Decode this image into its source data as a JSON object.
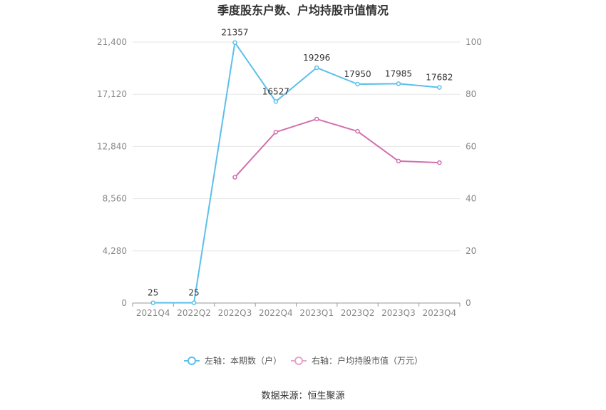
{
  "chart_data": {
    "type": "line",
    "title": "季度股东户数、户均持股市值情况",
    "categories": [
      "2021Q4",
      "2022Q2",
      "2022Q3",
      "2022Q4",
      "2023Q1",
      "2023Q2",
      "2023Q3",
      "2023Q4"
    ],
    "y_left": {
      "min": 0,
      "max": 21400,
      "ticks": [
        "0",
        "4,280",
        "8,560",
        "12,840",
        "17,120",
        "21,400"
      ],
      "tick_values": [
        0,
        4280,
        8560,
        12840,
        17120,
        21400
      ]
    },
    "y_right": {
      "min": 0,
      "max": 100,
      "ticks": [
        "0",
        "20",
        "40",
        "60",
        "80",
        "100"
      ],
      "tick_values": [
        0,
        20,
        40,
        60,
        80,
        100
      ]
    },
    "series": [
      {
        "name": "左轴：本期数（户）",
        "axis": "left",
        "color": "#5bc0eb",
        "values": [
          25,
          25,
          21357,
          16527,
          19296,
          17950,
          17985,
          17682
        ],
        "labels": [
          "25",
          "25",
          "21357",
          "16527",
          "19296",
          "17950",
          "17985",
          "17682"
        ]
      },
      {
        "name": "右轴：户均持股市值（万元）",
        "axis": "right",
        "color": "#d36fb0",
        "values": [
          null,
          null,
          48.2,
          65.5,
          70.5,
          65.8,
          54.4,
          53.8
        ]
      }
    ],
    "grid": true,
    "legend_position": "bottom"
  },
  "source_text": "数据来源：恒生聚源"
}
